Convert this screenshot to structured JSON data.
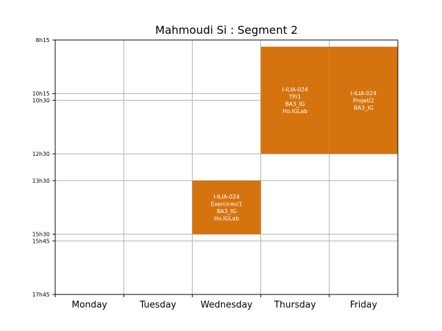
{
  "chart_data": {
    "type": "timetable",
    "title": "Mahmoudi Si : Segment 2",
    "days": [
      "Monday",
      "Tuesday",
      "Wednesday",
      "Thursday",
      "Friday"
    ],
    "ylim": [
      "8h15",
      "17h45"
    ],
    "yticks": [
      "8h15",
      "10h15",
      "10h30",
      "12h30",
      "13h30",
      "15h30",
      "15h45",
      "17h45"
    ],
    "grid": true,
    "event_color": "#d5740f",
    "events": [
      {
        "day": "Wednesday",
        "start": "13h30",
        "end": "15h30",
        "lines": [
          "I-ILIA-024",
          "Exercices/1",
          "BA3_IG",
          "Ho.IGLab"
        ]
      },
      {
        "day": "Thursday",
        "start": "8h30",
        "end": "12h30",
        "lines": [
          "I-ILIA-024",
          "TP/1",
          "BA3_IG",
          "Ho.IGLab"
        ]
      },
      {
        "day": "Friday",
        "start": "8h30",
        "end": "12h30",
        "lines": [
          "I-ILIA-024",
          "Projet/2",
          "BA3_IG"
        ]
      }
    ]
  }
}
